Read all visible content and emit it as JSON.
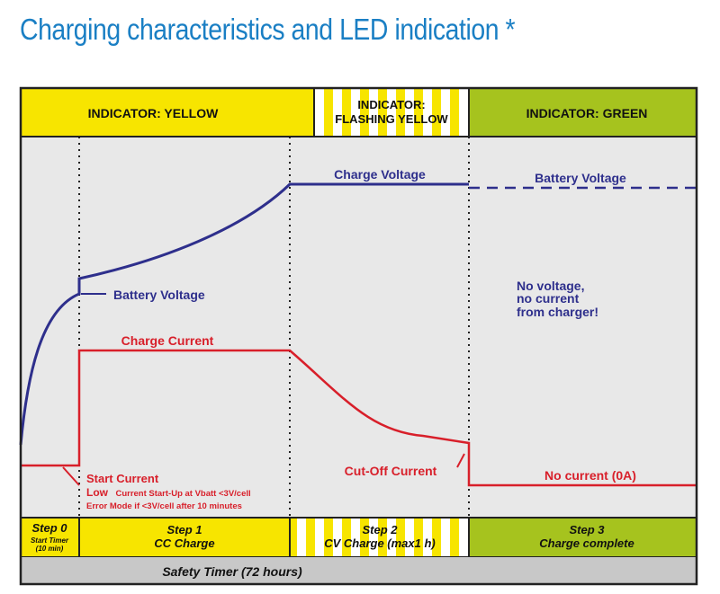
{
  "title": "Charging characteristics and LED indication *",
  "indicators": {
    "yellow": "INDICATOR: YELLOW",
    "flashing_line1": "INDICATOR:",
    "flashing_line2": "FLASHING YELLOW",
    "green": "INDICATOR: GREEN"
  },
  "curve_labels": {
    "charge_voltage": "Charge Voltage",
    "battery_voltage_top": "Battery Voltage",
    "battery_voltage_left": "Battery Voltage",
    "charge_current": "Charge Current",
    "cutoff_current": "Cut-Off Current",
    "no_current": "No current (0A)",
    "no_voltage_line1": "No voltage,",
    "no_voltage_line2": "no current",
    "no_voltage_line3": "from charger!"
  },
  "start_notes": {
    "start_current": "Start Current",
    "low_bold": "Low",
    "low_rest": "Current Start-Up at Vbatt <3V/cell",
    "error_mode": "Error Mode if <3V/cell after 10 minutes"
  },
  "steps": {
    "step0_title": "Step 0",
    "step0_line1": "Start Timer",
    "step0_line2": "(10 min)",
    "step1_title": "Step 1",
    "step1_sub": "CC Charge",
    "step2_title": "Step 2",
    "step2_sub": "CV Charge (max1 h)",
    "step3_title": "Step 3",
    "step3_sub": "Charge complete"
  },
  "safety_timer": "Safety Timer (72 hours)",
  "colors": {
    "title_blue": "#1a7fc4",
    "yellow": "#f7e500",
    "green": "#a6c31e",
    "navy": "#2e2f8c",
    "red": "#d81f2a",
    "panel_gray": "#e8e8e8",
    "footer_gray": "#c8c8c8"
  }
}
